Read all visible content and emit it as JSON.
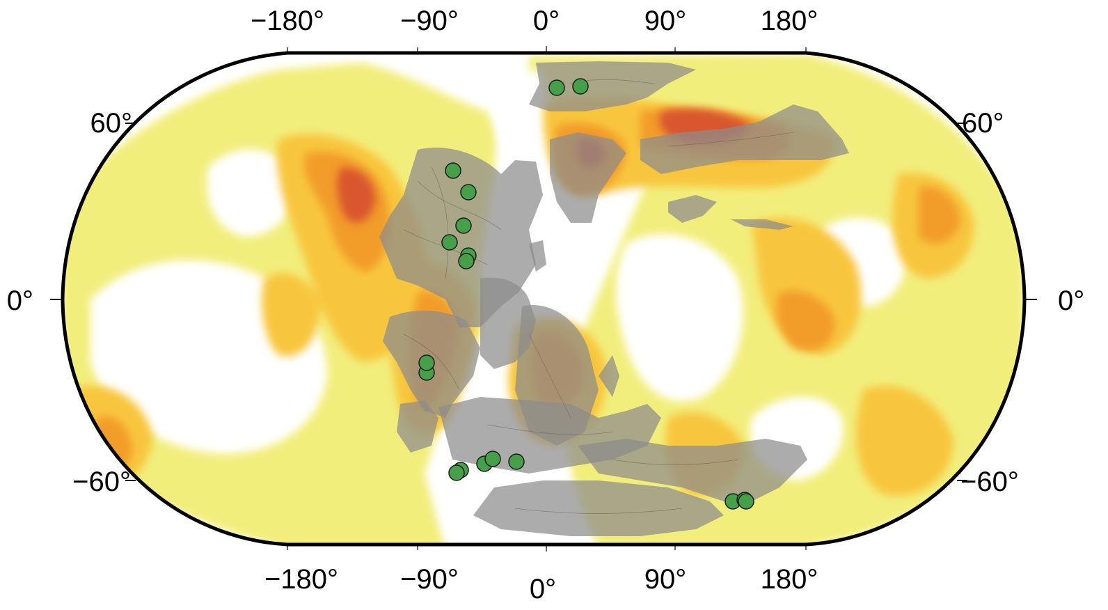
{
  "map": {
    "projection": "Robinson",
    "longitude_labels": [
      "−180°",
      "−90°",
      "0°",
      "90°",
      "180°"
    ],
    "latitude_labels": [
      "60°",
      "0°",
      "−60°"
    ],
    "colors": {
      "frame": "#000000",
      "background": "#ffffff",
      "level_1": "#f2ee7c",
      "level_2": "#f8c63c",
      "level_3": "#f29c2a",
      "level_4": "#e0652d",
      "level_5": "#c8443c",
      "continents": "#8c8c8c",
      "site_marker": "#46a04a"
    },
    "site_count": 20
  }
}
